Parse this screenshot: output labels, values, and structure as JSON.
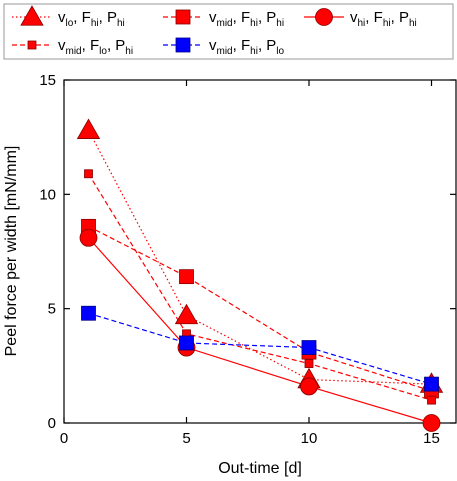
{
  "chart_data": {
    "type": "line",
    "xlabel": "Out-time [d]",
    "ylabel": "Peel force per width [mN/mm]",
    "xlim": [
      0,
      16
    ],
    "ylim": [
      0,
      15
    ],
    "x_ticks": [
      0,
      5,
      10,
      15
    ],
    "y_ticks": [
      0,
      5,
      10,
      15
    ],
    "x_tick_labels": [
      "0",
      "5",
      "10",
      "15"
    ],
    "y_tick_labels": [
      "0",
      "5",
      "10",
      "15"
    ],
    "grid": false,
    "legend_placement": "top",
    "series": [
      {
        "name_parts": [
          [
            "v",
            "lo"
          ],
          [
            "F",
            "hi"
          ],
          [
            "P",
            "hi"
          ]
        ],
        "color": "#ff0000",
        "marker": "triangle",
        "marker_size": "large",
        "line_style": "dotted",
        "x": [
          1,
          5,
          10,
          15
        ],
        "y": [
          12.8,
          4.7,
          1.9,
          1.7
        ]
      },
      {
        "name_parts": [
          [
            "v",
            "mid"
          ],
          [
            "F",
            "hi"
          ],
          [
            "P",
            "hi"
          ]
        ],
        "color": "#ff0000",
        "marker": "square",
        "marker_size": "large",
        "line_style": "dashed",
        "x": [
          1,
          5,
          10,
          15
        ],
        "y": [
          8.6,
          6.4,
          3.1,
          1.4
        ]
      },
      {
        "name_parts": [
          [
            "v",
            "hi"
          ],
          [
            "F",
            "hi"
          ],
          [
            "P",
            "hi"
          ]
        ],
        "color": "#ff0000",
        "marker": "circle",
        "marker_size": "large",
        "line_style": "solid",
        "x": [
          1,
          5,
          10,
          15
        ],
        "y": [
          8.1,
          3.3,
          1.6,
          0.0
        ]
      },
      {
        "name_parts": [
          [
            "v",
            "mid"
          ],
          [
            "F",
            "lo"
          ],
          [
            "P",
            "hi"
          ]
        ],
        "color": "#ff0000",
        "marker": "square",
        "marker_size": "small",
        "line_style": "dashed",
        "x": [
          1,
          5,
          10,
          15
        ],
        "y": [
          10.9,
          3.9,
          2.6,
          1.0
        ]
      },
      {
        "name_parts": [
          [
            "v",
            "mid"
          ],
          [
            "F",
            "hi"
          ],
          [
            "P",
            "lo"
          ]
        ],
        "color": "#0000ff",
        "marker": "square",
        "marker_size": "large",
        "line_style": "dashed",
        "x": [
          1,
          5,
          10,
          15
        ],
        "y": [
          4.8,
          3.5,
          3.3,
          1.7
        ]
      }
    ]
  }
}
